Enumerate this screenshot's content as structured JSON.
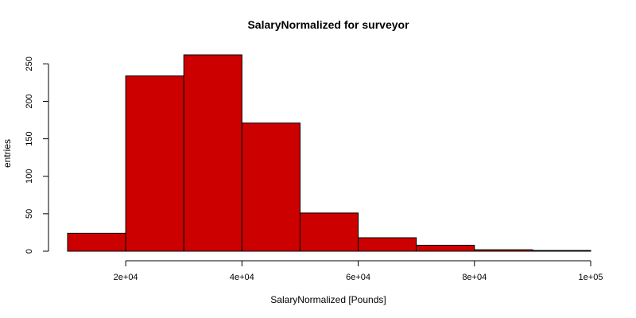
{
  "chart_data": {
    "type": "bar",
    "title": "SalaryNormalized for surveyor",
    "xlabel": "SalaryNormalized [Pounds]",
    "ylabel": "entries",
    "bin_edges": [
      10000,
      20000,
      30000,
      40000,
      50000,
      60000,
      70000,
      80000,
      90000,
      100000
    ],
    "values": [
      24,
      234,
      262,
      171,
      51,
      18,
      8,
      2,
      1
    ],
    "xlim": [
      10000,
      100000
    ],
    "ylim": [
      0,
      262
    ],
    "x_ticks": [
      20000,
      40000,
      60000,
      80000,
      100000
    ],
    "x_tick_labels": [
      "2e+04",
      "4e+04",
      "6e+04",
      "8e+04",
      "1e+05"
    ],
    "y_ticks": [
      0,
      50,
      100,
      150,
      200,
      250
    ],
    "y_tick_labels": [
      "0",
      "50",
      "100",
      "150",
      "200",
      "250"
    ],
    "bar_color": "#cd0000",
    "grid": false,
    "legend": "none"
  }
}
